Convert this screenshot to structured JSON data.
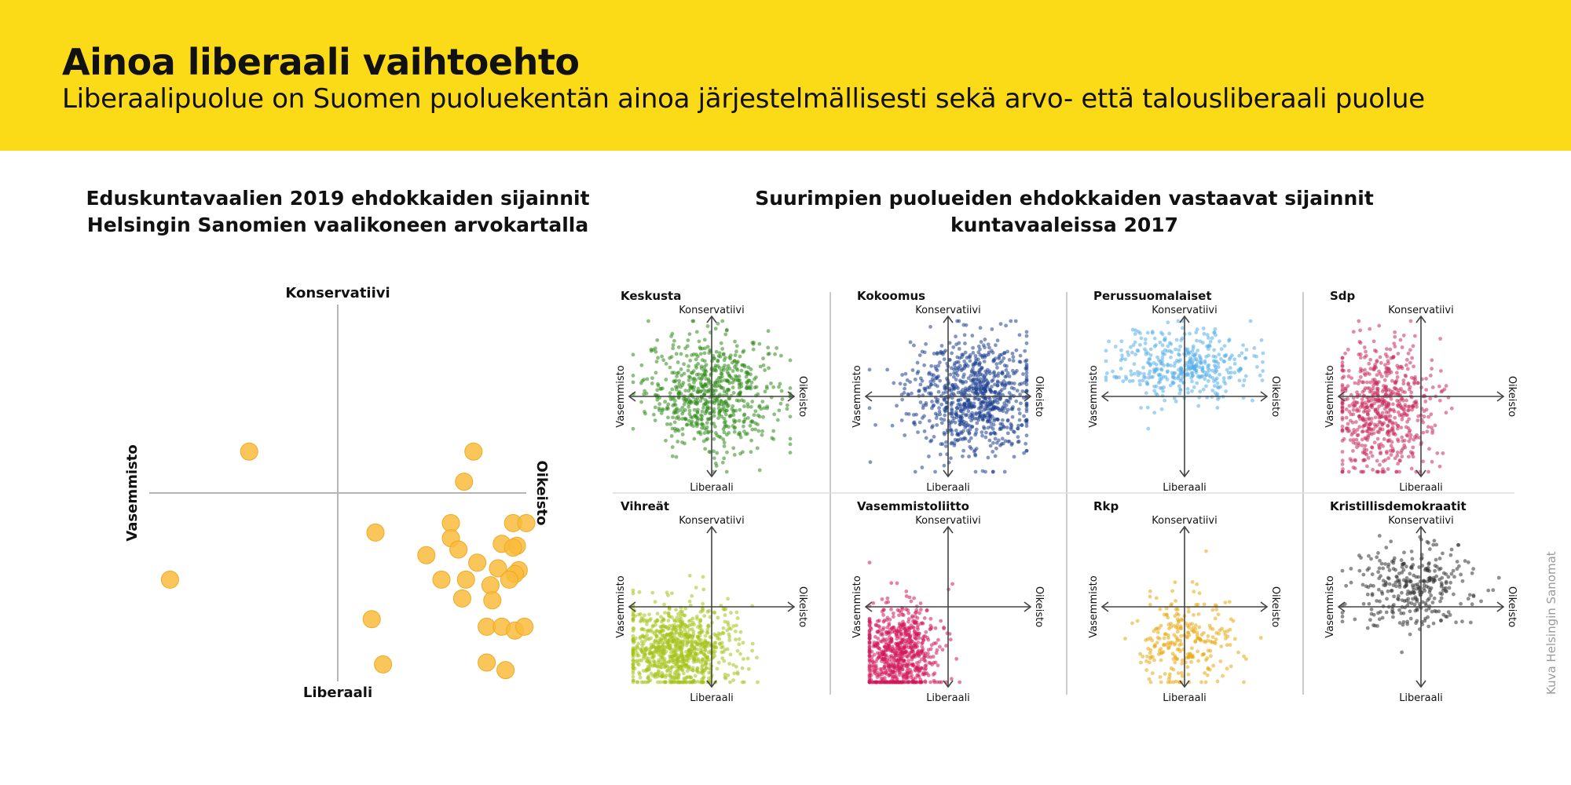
{
  "header": {
    "title": "Ainoa liberaali vaihtoehto",
    "subtitle": "Liberaalipuolue on Suomen puoluekentän ainoa järjestelmällisesti sekä arvo- että talousliberaali puolue"
  },
  "colors": {
    "banner": "#fbdb18",
    "marker": "#f9bb3c"
  },
  "credit": "Kuva Helsingin Sanomat",
  "chart_data": [
    {
      "type": "scatter",
      "title": "Eduskuntavaalien 2019 ehdokkaiden sijainnit Helsingin Sanomien vaalikoneen arvokartalla",
      "axes": {
        "top": "Konservatiivi",
        "bottom": "Liberaali",
        "left": "Vasemmisto",
        "right": "Oikeisto"
      },
      "xlim": [
        -1,
        1
      ],
      "ylim": [
        -1,
        1
      ],
      "points": [
        [
          -0.47,
          0.22
        ],
        [
          0.72,
          0.22
        ],
        [
          0.67,
          0.06
        ],
        [
          0.2,
          -0.21
        ],
        [
          0.6,
          -0.16
        ],
        [
          0.93,
          -0.16
        ],
        [
          1.0,
          -0.16
        ],
        [
          0.95,
          -0.28
        ],
        [
          0.47,
          -0.33
        ],
        [
          0.6,
          -0.24
        ],
        [
          0.87,
          -0.27
        ],
        [
          0.93,
          -0.29
        ],
        [
          0.64,
          -0.3
        ],
        [
          0.74,
          -0.37
        ],
        [
          0.85,
          -0.4
        ],
        [
          0.96,
          -0.41
        ],
        [
          0.94,
          -0.43
        ],
        [
          -0.89,
          -0.46
        ],
        [
          0.55,
          -0.46
        ],
        [
          0.68,
          -0.46
        ],
        [
          0.81,
          -0.49
        ],
        [
          0.91,
          -0.46
        ],
        [
          0.66,
          -0.56
        ],
        [
          0.82,
          -0.57
        ],
        [
          0.18,
          -0.67
        ],
        [
          0.79,
          -0.71
        ],
        [
          0.87,
          -0.71
        ],
        [
          0.94,
          -0.73
        ],
        [
          0.99,
          -0.71
        ],
        [
          0.24,
          -0.91
        ],
        [
          0.79,
          -0.9
        ],
        [
          0.89,
          -0.94
        ]
      ]
    },
    {
      "type": "scatter",
      "title": "Suurimpien puolueiden ehdokkaiden vastaavat sijainnit kuntavaaleissa 2017",
      "axes": {
        "top": "Konservatiivi",
        "bottom": "Liberaali",
        "left": "Vasemmisto",
        "right": "Oikeisto"
      },
      "panels": [
        {
          "name": "Keskusta",
          "color": "#2f8a18",
          "n": 700,
          "center": [
            0.0,
            0.05
          ],
          "spread": [
            0.42,
            0.38
          ]
        },
        {
          "name": "Kokoomus",
          "color": "#1d3f8f",
          "n": 850,
          "center": [
            0.3,
            0.0
          ],
          "spread": [
            0.4,
            0.38
          ]
        },
        {
          "name": "Perussuomalaiset",
          "color": "#58aee8",
          "n": 420,
          "center": [
            0.0,
            0.4
          ],
          "spread": [
            0.45,
            0.25
          ]
        },
        {
          "name": "Sdp",
          "color": "#c82e5c",
          "n": 650,
          "center": [
            -0.5,
            -0.2
          ],
          "spread": [
            0.32,
            0.45
          ]
        },
        {
          "name": "Vihreät",
          "color": "#a4c21a",
          "n": 900,
          "center": [
            -0.45,
            -0.55
          ],
          "spread": [
            0.35,
            0.3
          ]
        },
        {
          "name": "Vasemmistoliitto",
          "color": "#d1195b",
          "n": 750,
          "center": [
            -0.65,
            -0.6
          ],
          "spread": [
            0.25,
            0.33
          ]
        },
        {
          "name": "Rkp",
          "color": "#e7a70f",
          "n": 260,
          "center": [
            0.0,
            -0.45
          ],
          "spread": [
            0.3,
            0.3
          ]
        },
        {
          "name": "Kristillisdemokraatit",
          "color": "#333333",
          "n": 330,
          "center": [
            -0.1,
            0.25
          ],
          "spread": [
            0.38,
            0.28
          ]
        }
      ]
    }
  ]
}
